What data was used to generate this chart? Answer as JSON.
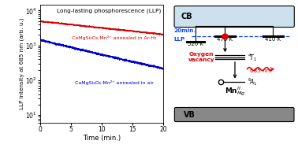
{
  "title_left": "Long-lasting phosphorescence (LLP)",
  "xlabel": "Time (min.)",
  "ylabel": "LLP intensity at 685 nm (arb. u.)",
  "red_label": "CaMgSi₂O₆:Mn²⁺ annealed in Ar-H₂",
  "blue_label": "CaMgSi₂O₆:Mn²⁺ annealed in air",
  "xlim": [
    0,
    20
  ],
  "red_color": "#dd0000",
  "blue_color": "#0000cc",
  "bg_color": "#ffffff",
  "cb_label": "CB",
  "vb_label": "VB",
  "label_520": "520 K",
  "label_475": "475 K",
  "label_410": "410 K",
  "label_oxy": "Oxygen\nvacancy",
  "label_4T1": "^4T_1",
  "label_6A1": "^6A_1",
  "label_685nm": "685 nm",
  "dashed_color": "#1144ff",
  "cb_face": "#cce0ee",
  "vb_face": "#888888"
}
